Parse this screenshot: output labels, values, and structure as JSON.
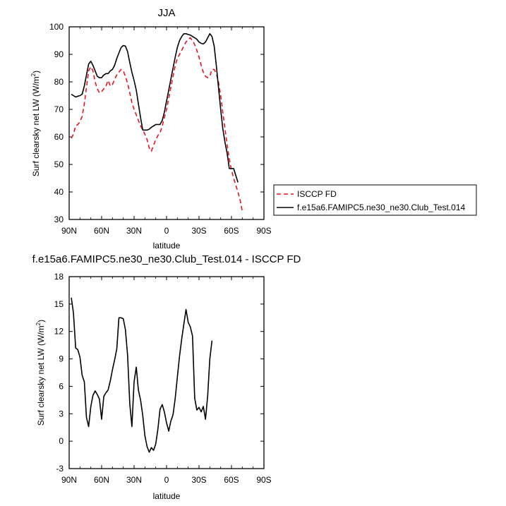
{
  "chart_data": [
    {
      "type": "line",
      "title": "JJA",
      "xlabel": "latitude",
      "ylabel": "Surf clearsky net LW (W/m²)",
      "ylabel_main": "Surf clearsky net LW (W/m",
      "ylabel_sup": "2",
      "ylabel_end": ")",
      "xlim": [
        -90,
        90
      ],
      "ylim": [
        30,
        100
      ],
      "x_ticks": [
        -90,
        -60,
        -30,
        0,
        30,
        60,
        90
      ],
      "x_tick_labels": [
        "90N",
        "60N",
        "30N",
        "0",
        "30S",
        "60S",
        "90S"
      ],
      "y_ticks": [
        30,
        40,
        50,
        60,
        70,
        80,
        90,
        100
      ],
      "y_tick_labels": [
        "30",
        "40",
        "50",
        "60",
        "70",
        "80",
        "90",
        "100"
      ],
      "legend_position": "right",
      "series": [
        {
          "name": "ISCCP FD",
          "color": "#e8141b",
          "dash": true,
          "points": [
            [
              -88,
              59.5
            ],
            [
              -86,
              61
            ],
            [
              -84,
              64
            ],
            [
              -82,
              64.5
            ],
            [
              -80,
              65.5
            ],
            [
              -78,
              67.5
            ],
            [
              -76,
              72
            ],
            [
              -74,
              78
            ],
            [
              -72,
              84
            ],
            [
              -70,
              85.5
            ],
            [
              -68,
              84
            ],
            [
              -66,
              80
            ],
            [
              -64,
              77.5
            ],
            [
              -62,
              76
            ],
            [
              -60,
              76.5
            ],
            [
              -58,
              77.5
            ],
            [
              -56,
              78.5
            ],
            [
              -54,
              80.5
            ],
            [
              -52,
              78.5
            ],
            [
              -50,
              79
            ],
            [
              -48,
              81
            ],
            [
              -46,
              82.5
            ],
            [
              -44,
              83.5
            ],
            [
              -42,
              84.5
            ],
            [
              -40,
              84
            ],
            [
              -38,
              82
            ],
            [
              -36,
              79.5
            ],
            [
              -34,
              76
            ],
            [
              -32,
              72.5
            ],
            [
              -30,
              70
            ],
            [
              -28,
              68
            ],
            [
              -26,
              66
            ],
            [
              -24,
              64
            ],
            [
              -22,
              62.5
            ],
            [
              -20,
              61
            ],
            [
              -18,
              59
            ],
            [
              -16,
              56
            ],
            [
              -14,
              54.8
            ],
            [
              -12,
              57
            ],
            [
              -10,
              59
            ],
            [
              -8,
              60.5
            ],
            [
              -6,
              61.5
            ],
            [
              -4,
              64
            ],
            [
              -2,
              67
            ],
            [
              0,
              70
            ],
            [
              2,
              74
            ],
            [
              4,
              78
            ],
            [
              6,
              82
            ],
            [
              8,
              86
            ],
            [
              10,
              88.5
            ],
            [
              12,
              90
            ],
            [
              14,
              91.5
            ],
            [
              16,
              93
            ],
            [
              18,
              94.5
            ],
            [
              20,
              95.5
            ],
            [
              22,
              96
            ],
            [
              24,
              95
            ],
            [
              26,
              93.5
            ],
            [
              28,
              91.5
            ],
            [
              30,
              89
            ],
            [
              32,
              86
            ],
            [
              34,
              83.5
            ],
            [
              36,
              82
            ],
            [
              38,
              81.5
            ],
            [
              40,
              82
            ],
            [
              42,
              84.5
            ],
            [
              44,
              84.5
            ],
            [
              46,
              83
            ],
            [
              48,
              80
            ],
            [
              50,
              75
            ],
            [
              52,
              69
            ],
            [
              54,
              63
            ],
            [
              56,
              57
            ],
            [
              58,
              52
            ],
            [
              60,
              48
            ],
            [
              62,
              45
            ],
            [
              64,
              42.5
            ],
            [
              66,
              40
            ],
            [
              68,
              37
            ],
            [
              70,
              33
            ]
          ]
        },
        {
          "name": "f.e15a6.FAMIPC5.ne30_ne30.Club_Test.014",
          "color": "#000000",
          "dash": false,
          "points": [
            [
              -88,
              75.5
            ],
            [
              -86,
              75
            ],
            [
              -84,
              74.5
            ],
            [
              -82,
              74.8
            ],
            [
              -80,
              75
            ],
            [
              -78,
              75.5
            ],
            [
              -76,
              78.5
            ],
            [
              -74,
              82.5
            ],
            [
              -72,
              86.5
            ],
            [
              -70,
              87.5
            ],
            [
              -68,
              86
            ],
            [
              -66,
              84
            ],
            [
              -64,
              82
            ],
            [
              -62,
              81.5
            ],
            [
              -60,
              81.5
            ],
            [
              -58,
              82.5
            ],
            [
              -56,
              83
            ],
            [
              -54,
              83
            ],
            [
              -52,
              84
            ],
            [
              -50,
              84.5
            ],
            [
              -48,
              86
            ],
            [
              -46,
              88.5
            ],
            [
              -44,
              90.5
            ],
            [
              -42,
              92.5
            ],
            [
              -40,
              93.2
            ],
            [
              -38,
              93
            ],
            [
              -36,
              91
            ],
            [
              -34,
              87
            ],
            [
              -32,
              83.5
            ],
            [
              -30,
              80.5
            ],
            [
              -28,
              77
            ],
            [
              -26,
              72
            ],
            [
              -24,
              67
            ],
            [
              -22,
              62.5
            ],
            [
              -20,
              62.5
            ],
            [
              -18,
              62.5
            ],
            [
              -16,
              62.8
            ],
            [
              -14,
              63.5
            ],
            [
              -12,
              64
            ],
            [
              -10,
              64.5
            ],
            [
              -8,
              64.5
            ],
            [
              -6,
              64.5
            ],
            [
              -4,
              66
            ],
            [
              -2,
              69
            ],
            [
              0,
              73
            ],
            [
              2,
              77
            ],
            [
              4,
              81
            ],
            [
              6,
              85
            ],
            [
              8,
              89
            ],
            [
              10,
              92.5
            ],
            [
              12,
              95
            ],
            [
              14,
              96.5
            ],
            [
              16,
              97.5
            ],
            [
              18,
              97.5
            ],
            [
              20,
              97.2
            ],
            [
              22,
              97
            ],
            [
              24,
              96.5
            ],
            [
              26,
              96
            ],
            [
              28,
              95.5
            ],
            [
              30,
              94.5
            ],
            [
              32,
              94
            ],
            [
              34,
              93.8
            ],
            [
              36,
              94.5
            ],
            [
              38,
              96
            ],
            [
              40,
              97.5
            ],
            [
              42,
              96.5
            ],
            [
              44,
              93
            ],
            [
              46,
              86
            ],
            [
              48,
              78
            ],
            [
              50,
              70
            ],
            [
              52,
              63
            ],
            [
              54,
              58
            ],
            [
              56,
              54
            ],
            [
              58,
              48.5
            ],
            [
              60,
              48.5
            ],
            [
              62,
              48.5
            ],
            [
              64,
              46
            ],
            [
              66,
              43.5
            ]
          ]
        }
      ]
    },
    {
      "type": "line",
      "title": "f.e15a6.FAMIPC5.ne30_ne30.Club_Test.014 - ISCCP FD",
      "xlabel": "latitude",
      "ylabel": "Surf clearsky net LW (W/m²)",
      "ylabel_main": "Surf clearsky net LW (W/m",
      "ylabel_sup": "2",
      "ylabel_end": ")",
      "xlim": [
        -90,
        90
      ],
      "ylim": [
        -3,
        18
      ],
      "x_ticks": [
        -90,
        -60,
        -30,
        0,
        30,
        60,
        90
      ],
      "x_tick_labels": [
        "90N",
        "60N",
        "30N",
        "0",
        "30S",
        "60S",
        "90S"
      ],
      "y_ticks": [
        -3,
        0,
        3,
        6,
        9,
        12,
        15,
        18
      ],
      "y_tick_labels": [
        "-3",
        "0",
        "3",
        "6",
        "9",
        "12",
        "15",
        "18"
      ],
      "series": [
        {
          "color": "#000000",
          "dash": false,
          "points": [
            [
              -88,
              15.7
            ],
            [
              -86,
              14
            ],
            [
              -84,
              10.2
            ],
            [
              -82,
              10
            ],
            [
              -80,
              9.2
            ],
            [
              -78,
              7.2
            ],
            [
              -76,
              6.5
            ],
            [
              -74,
              2.6
            ],
            [
              -72,
              1.6
            ],
            [
              -70,
              3.8
            ],
            [
              -68,
              5
            ],
            [
              -66,
              5.5
            ],
            [
              -64,
              5.1
            ],
            [
              -62,
              4.6
            ],
            [
              -60,
              2.4
            ],
            [
              -58,
              4.9
            ],
            [
              -56,
              5.3
            ],
            [
              -54,
              5.6
            ],
            [
              -52,
              6.6
            ],
            [
              -50,
              7.8
            ],
            [
              -48,
              8.9
            ],
            [
              -46,
              10.1
            ],
            [
              -44,
              13.5
            ],
            [
              -42,
              13.5
            ],
            [
              -40,
              13.4
            ],
            [
              -38,
              12.2
            ],
            [
              -36,
              9.4
            ],
            [
              -34,
              4.1
            ],
            [
              -32,
              1.6
            ],
            [
              -30,
              6.5
            ],
            [
              -28,
              8.1
            ],
            [
              -26,
              5.6
            ],
            [
              -24,
              4.5
            ],
            [
              -22,
              2.8
            ],
            [
              -20,
              0.6
            ],
            [
              -18,
              -0.6
            ],
            [
              -16,
              -1.2
            ],
            [
              -14,
              -0.7
            ],
            [
              -12,
              -1
            ],
            [
              -10,
              -0.3
            ],
            [
              -8,
              1.3
            ],
            [
              -6,
              3.5
            ],
            [
              -4,
              4
            ],
            [
              -2,
              3.2
            ],
            [
              0,
              2
            ],
            [
              2,
              1.1
            ],
            [
              4,
              2.2
            ],
            [
              6,
              2.9
            ],
            [
              8,
              4.7
            ],
            [
              10,
              7
            ],
            [
              12,
              9.3
            ],
            [
              14,
              11.2
            ],
            [
              16,
              12.8
            ],
            [
              18,
              14.4
            ],
            [
              20,
              13
            ],
            [
              22,
              12.5
            ],
            [
              24,
              11.5
            ],
            [
              26,
              4.7
            ],
            [
              28,
              3.4
            ],
            [
              30,
              3.7
            ],
            [
              32,
              3.2
            ],
            [
              34,
              3.8
            ],
            [
              36,
              2.4
            ],
            [
              38,
              5
            ],
            [
              40,
              9
            ],
            [
              42,
              11
            ]
          ]
        }
      ]
    }
  ]
}
